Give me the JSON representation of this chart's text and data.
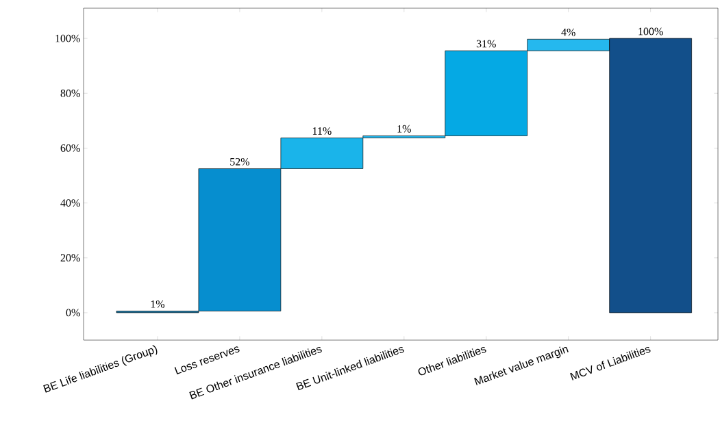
{
  "chart_data": {
    "type": "bar",
    "categories": [
      "BE Life liabilities (Group)",
      "Loss reserves",
      "BE Other insurance liabilities",
      "BE Unit-linked liabilities",
      "Other liabilities",
      "Market value margin",
      "MCV of Liabilities"
    ],
    "values": [
      0.6,
      51.9,
      11.2,
      0.8,
      31.0,
      4.2,
      100
    ],
    "base": [
      0,
      0.6,
      52.5,
      63.7,
      64.5,
      95.5,
      0
    ],
    "colors": [
      "#1c7aa8",
      "#068ecf",
      "#1ab4ea",
      "#22b4ea",
      "#05a9e4",
      "#25b8ee",
      "#124f8a"
    ],
    "value_labels": [
      "1%",
      "52%",
      "11%",
      "1%",
      "31%",
      "4%",
      "100%"
    ],
    "ylim": [
      -10,
      111
    ],
    "yticks": [
      {
        "value": 0,
        "label": "0%"
      },
      {
        "value": 20,
        "label": "20%"
      },
      {
        "value": 40,
        "label": "40%"
      },
      {
        "value": 60,
        "label": "60%"
      },
      {
        "value": 80,
        "label": "80%"
      },
      {
        "value": 100,
        "label": "100%"
      }
    ],
    "orientation": "vertical"
  }
}
